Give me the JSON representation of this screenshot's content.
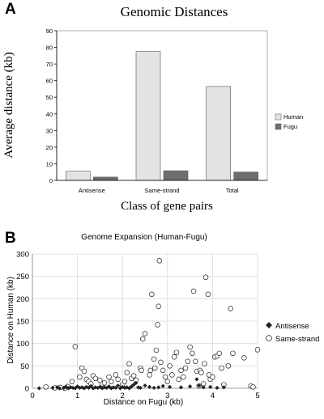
{
  "colors": {
    "human_bar": "#e3e3e3",
    "fugu_bar": "#6e6e6e",
    "axis": "#000000",
    "plot_border": "#9a9a9a",
    "grid": "#d8d8d8",
    "antisense_marker": "#222222",
    "samestrand_marker": "#ffffff"
  },
  "chart_data": [
    {
      "panel_label": "A",
      "type": "bar",
      "title": "Genomic Distances",
      "ylabel": "Average distance (kb)",
      "xlabel": "Class of gene pairs",
      "categories": [
        "Antisense",
        "Same-strand",
        "Total"
      ],
      "series": [
        {
          "name": "Human",
          "values": [
            5.5,
            77.5,
            56.5
          ]
        },
        {
          "name": "Fugu",
          "values": [
            2.0,
            5.8,
            5.0
          ]
        }
      ],
      "ylim": [
        0,
        90
      ],
      "yticks": [
        "0",
        "10",
        "20",
        "30",
        "40",
        "50",
        "60",
        "70",
        "80",
        "90"
      ],
      "grid": false,
      "legend_position": "right"
    },
    {
      "panel_label": "B",
      "type": "scatter",
      "title": "Genome Expansion (Human-Fugu)",
      "xlabel": "Distance on Fugu (kb)",
      "ylabel": "Distance on Human (kb)",
      "xlim": [
        0,
        5
      ],
      "ylim": [
        0,
        300
      ],
      "xticks": [
        "0",
        "1",
        "2",
        "3",
        "4",
        "5"
      ],
      "yticks": [
        "0",
        "50",
        "100",
        "150",
        "200",
        "250",
        "300"
      ],
      "grid": true,
      "legend_position": "right",
      "series": [
        {
          "name": "Antisense",
          "marker": "filled-diamond",
          "points": [
            [
              0.15,
              0
            ],
            [
              0.45,
              1
            ],
            [
              0.55,
              2
            ],
            [
              0.6,
              0
            ],
            [
              0.7,
              1
            ],
            [
              0.75,
              3
            ],
            [
              0.8,
              0
            ],
            [
              0.85,
              2
            ],
            [
              0.9,
              1
            ],
            [
              0.95,
              0
            ],
            [
              1.0,
              4
            ],
            [
              1.05,
              1
            ],
            [
              1.1,
              2
            ],
            [
              1.15,
              0
            ],
            [
              1.2,
              3
            ],
            [
              1.25,
              1
            ],
            [
              1.3,
              5
            ],
            [
              1.35,
              0
            ],
            [
              1.4,
              2
            ],
            [
              1.45,
              1
            ],
            [
              1.5,
              3
            ],
            [
              1.55,
              0
            ],
            [
              1.6,
              2
            ],
            [
              1.65,
              1
            ],
            [
              1.7,
              4
            ],
            [
              1.75,
              0
            ],
            [
              1.8,
              2
            ],
            [
              1.85,
              1
            ],
            [
              1.9,
              6
            ],
            [
              1.95,
              0
            ],
            [
              2.0,
              3
            ],
            [
              2.05,
              1
            ],
            [
              2.1,
              2
            ],
            [
              2.15,
              0
            ],
            [
              2.2,
              4
            ],
            [
              2.25,
              8
            ],
            [
              2.3,
              12
            ],
            [
              2.35,
              2
            ],
            [
              2.4,
              1
            ],
            [
              2.5,
              6
            ],
            [
              2.6,
              3
            ],
            [
              2.7,
              1
            ],
            [
              2.8,
              2
            ],
            [
              2.9,
              5
            ],
            [
              3.05,
              3
            ],
            [
              3.3,
              2
            ],
            [
              3.5,
              4
            ],
            [
              3.65,
              20
            ],
            [
              3.7,
              6
            ],
            [
              3.8,
              2
            ],
            [
              3.95,
              3
            ],
            [
              4.1,
              1
            ],
            [
              4.25,
              2
            ]
          ]
        },
        {
          "name": "Same-strand",
          "marker": "open-circle",
          "points": [
            [
              0.3,
              3
            ],
            [
              0.5,
              1
            ],
            [
              0.62,
              2
            ],
            [
              0.72,
              0
            ],
            [
              0.78,
              4
            ],
            [
              0.88,
              15
            ],
            [
              0.95,
              93
            ],
            [
              1.05,
              25
            ],
            [
              1.1,
              45
            ],
            [
              1.15,
              38
            ],
            [
              1.2,
              20
            ],
            [
              1.25,
              15
            ],
            [
              1.3,
              10
            ],
            [
              1.35,
              28
            ],
            [
              1.4,
              22
            ],
            [
              1.5,
              18
            ],
            [
              1.55,
              10
            ],
            [
              1.6,
              12
            ],
            [
              1.7,
              25
            ],
            [
              1.75,
              15
            ],
            [
              1.85,
              30
            ],
            [
              1.9,
              20
            ],
            [
              2.0,
              8
            ],
            [
              2.05,
              15
            ],
            [
              2.1,
              35
            ],
            [
              2.15,
              55
            ],
            [
              2.2,
              22
            ],
            [
              2.25,
              28
            ],
            [
              2.3,
              18
            ],
            [
              2.4,
              45
            ],
            [
              2.42,
              40
            ],
            [
              2.45,
              110
            ],
            [
              2.5,
              122
            ],
            [
              2.6,
              30
            ],
            [
              2.62,
              40
            ],
            [
              2.65,
              210
            ],
            [
              2.7,
              65
            ],
            [
              2.72,
              45
            ],
            [
              2.75,
              85
            ],
            [
              2.78,
              142
            ],
            [
              2.8,
              183
            ],
            [
              2.82,
              285
            ],
            [
              2.85,
              58
            ],
            [
              2.9,
              40
            ],
            [
              2.95,
              25
            ],
            [
              3.0,
              15
            ],
            [
              3.05,
              50
            ],
            [
              3.1,
              30
            ],
            [
              3.15,
              70
            ],
            [
              3.2,
              80
            ],
            [
              3.25,
              20
            ],
            [
              3.3,
              40
            ],
            [
              3.35,
              25
            ],
            [
              3.4,
              45
            ],
            [
              3.45,
              60
            ],
            [
              3.5,
              92
            ],
            [
              3.55,
              78
            ],
            [
              3.58,
              217
            ],
            [
              3.62,
              60
            ],
            [
              3.65,
              38
            ],
            [
              3.7,
              5
            ],
            [
              3.72,
              40
            ],
            [
              3.75,
              35
            ],
            [
              3.8,
              10
            ],
            [
              3.82,
              55
            ],
            [
              3.85,
              248
            ],
            [
              3.9,
              210
            ],
            [
              3.92,
              30
            ],
            [
              3.95,
              20
            ],
            [
              4.0,
              25
            ],
            [
              4.05,
              70
            ],
            [
              4.1,
              72
            ],
            [
              4.15,
              78
            ],
            [
              4.2,
              45
            ],
            [
              4.25,
              8
            ],
            [
              4.35,
              50
            ],
            [
              4.4,
              178
            ],
            [
              4.45,
              78
            ],
            [
              4.7,
              68
            ],
            [
              4.85,
              5
            ],
            [
              4.9,
              3
            ],
            [
              5.0,
              86
            ]
          ]
        }
      ]
    }
  ]
}
